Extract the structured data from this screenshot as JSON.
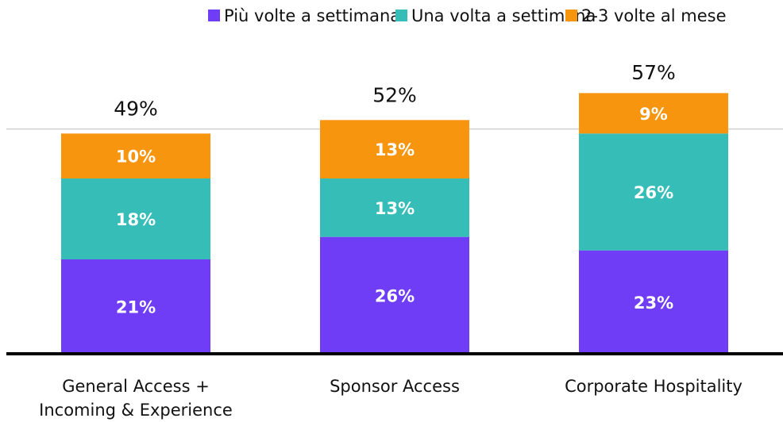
{
  "chart_data": {
    "type": "stacked-bar",
    "categories": [
      "General Access + Incoming & Experience",
      "Sponsor Access",
      "Corporate Hospitality"
    ],
    "series": [
      {
        "name": "Più volte a settimana",
        "color": "#6f3df5",
        "values": [
          21,
          26,
          23
        ],
        "value_labels": [
          "21%",
          "26%",
          "23%"
        ]
      },
      {
        "name": "Una volta a settimana",
        "color": "#36bdb8",
        "values": [
          18,
          13,
          26
        ],
        "value_labels": [
          "18%",
          "13%",
          "26%"
        ]
      },
      {
        "name": "2-3 volte al mese",
        "color": "#f7950f",
        "values": [
          10,
          13,
          9
        ],
        "value_labels": [
          "10%",
          "13%",
          "9%"
        ]
      }
    ],
    "totals": [
      49,
      52,
      57
    ],
    "total_labels": [
      "49%",
      "52%",
      "57%"
    ],
    "ylim": [
      0,
      60
    ],
    "yticks": [
      50
    ],
    "grid": true,
    "legend": "top"
  }
}
